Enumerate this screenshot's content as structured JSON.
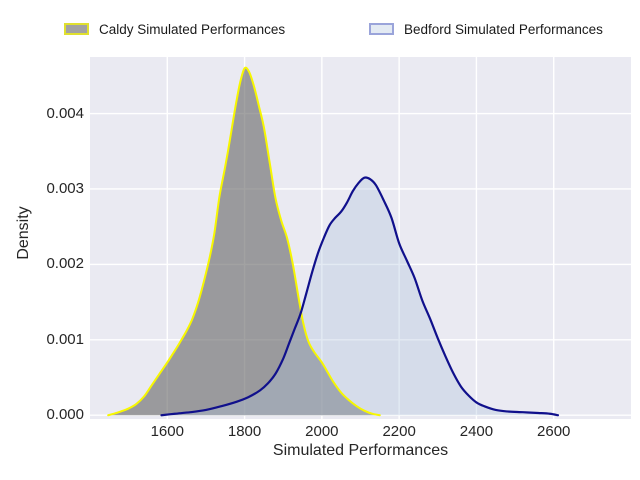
{
  "legend": {
    "entries": [
      {
        "key": "caldy",
        "label": "Caldy Simulated Performances",
        "fill": "#a2a2a2",
        "edge": "#e0e02e"
      },
      {
        "key": "bedford",
        "label": "Bedford Simulated Performances",
        "fill": "#e3eaf3",
        "edge": "#9aa4da"
      }
    ]
  },
  "chart_data": {
    "type": "area",
    "subtype": "kde-density",
    "title": "",
    "xlabel": "Simulated Performances",
    "ylabel": "Density",
    "xlim": [
      1400,
      2800
    ],
    "ylim": [
      -5e-05,
      0.00475
    ],
    "xticks": [
      1600,
      1800,
      2000,
      2200,
      2400,
      2600
    ],
    "xtick_labels": [
      "1600",
      "1800",
      "2000",
      "2200",
      "2400",
      "2600"
    ],
    "yticks": [
      0,
      0.001,
      0.002,
      0.003,
      0.004
    ],
    "ytick_labels": [
      "0.000",
      "0.001",
      "0.002",
      "0.003",
      "0.004"
    ],
    "grid": true,
    "legend_position": "top",
    "plot_bg": "#eaeaf2",
    "grid_color": "#ffffff",
    "series": [
      {
        "key": "caldy",
        "name": "Caldy Simulated Performances",
        "fill": "rgba(105,105,105,0.62)",
        "edge": "#f7f700",
        "edge_width": 2,
        "peak": {
          "x": 1800,
          "density": 0.0046
        },
        "points": [
          [
            1447,
            0
          ],
          [
            1462,
            2e-05
          ],
          [
            1480,
            5e-05
          ],
          [
            1500,
            9e-05
          ],
          [
            1520,
            0.00015
          ],
          [
            1540,
            0.00025
          ],
          [
            1560,
            0.0004
          ],
          [
            1580,
            0.00055
          ],
          [
            1600,
            0.0007
          ],
          [
            1615,
            0.00082
          ],
          [
            1632,
            0.00096
          ],
          [
            1650,
            0.00112
          ],
          [
            1665,
            0.00128
          ],
          [
            1680,
            0.0015
          ],
          [
            1695,
            0.00178
          ],
          [
            1710,
            0.0021
          ],
          [
            1722,
            0.00242
          ],
          [
            1735,
            0.0029
          ],
          [
            1750,
            0.0033
          ],
          [
            1762,
            0.00365
          ],
          [
            1775,
            0.00405
          ],
          [
            1788,
            0.0044
          ],
          [
            1800,
            0.0046
          ],
          [
            1812,
            0.00455
          ],
          [
            1825,
            0.00435
          ],
          [
            1838,
            0.00408
          ],
          [
            1850,
            0.00382
          ],
          [
            1865,
            0.00335
          ],
          [
            1880,
            0.00288
          ],
          [
            1895,
            0.00258
          ],
          [
            1910,
            0.00235
          ],
          [
            1925,
            0.002
          ],
          [
            1940,
            0.00155
          ],
          [
            1952,
            0.00122
          ],
          [
            1965,
            0.00098
          ],
          [
            1980,
            0.00084
          ],
          [
            2000,
            0.0007
          ],
          [
            2015,
            0.00057
          ],
          [
            2030,
            0.00044
          ],
          [
            2050,
            0.0003
          ],
          [
            2070,
            0.0002
          ],
          [
            2090,
            0.00012
          ],
          [
            2110,
            6e-05
          ],
          [
            2130,
            2e-05
          ],
          [
            2150,
            0
          ]
        ]
      },
      {
        "key": "bedford",
        "name": "Bedford Simulated Performances",
        "fill": "rgba(176,196,222,0.35)",
        "edge": "#10108c",
        "edge_width": 2.2,
        "peak": {
          "x": 2115,
          "density": 0.00315
        },
        "points": [
          [
            1585,
            0
          ],
          [
            1620,
            2e-05
          ],
          [
            1660,
            4e-05
          ],
          [
            1700,
            7e-05
          ],
          [
            1740,
            0.00012
          ],
          [
            1780,
            0.00018
          ],
          [
            1810,
            0.00024
          ],
          [
            1840,
            0.00033
          ],
          [
            1860,
            0.00042
          ],
          [
            1880,
            0.00055
          ],
          [
            1900,
            0.00075
          ],
          [
            1915,
            0.00095
          ],
          [
            1930,
            0.00115
          ],
          [
            1945,
            0.00135
          ],
          [
            1960,
            0.00162
          ],
          [
            1975,
            0.0019
          ],
          [
            1990,
            0.00215
          ],
          [
            2005,
            0.00235
          ],
          [
            2020,
            0.00252
          ],
          [
            2035,
            0.00262
          ],
          [
            2050,
            0.0027
          ],
          [
            2065,
            0.00282
          ],
          [
            2080,
            0.00297
          ],
          [
            2095,
            0.00308
          ],
          [
            2110,
            0.00315
          ],
          [
            2125,
            0.00313
          ],
          [
            2140,
            0.00305
          ],
          [
            2160,
            0.00285
          ],
          [
            2180,
            0.00262
          ],
          [
            2200,
            0.00228
          ],
          [
            2220,
            0.00205
          ],
          [
            2240,
            0.00182
          ],
          [
            2260,
            0.00152
          ],
          [
            2280,
            0.00128
          ],
          [
            2300,
            0.00102
          ],
          [
            2320,
            0.00078
          ],
          [
            2340,
            0.00056
          ],
          [
            2360,
            0.00038
          ],
          [
            2380,
            0.00026
          ],
          [
            2400,
            0.00017
          ],
          [
            2420,
            0.00012
          ],
          [
            2450,
            7e-05
          ],
          [
            2480,
            5e-05
          ],
          [
            2520,
            4e-05
          ],
          [
            2560,
            3e-05
          ],
          [
            2590,
            2e-05
          ],
          [
            2611,
            0
          ]
        ]
      }
    ]
  }
}
